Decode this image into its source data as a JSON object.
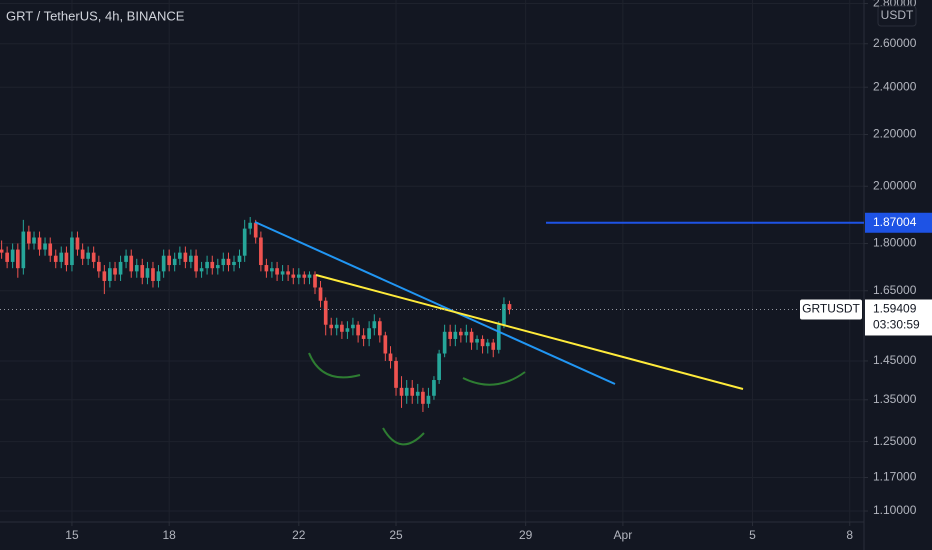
{
  "chart_data": {
    "type": "candlestick",
    "title": "GRT / TetherUS, 4h, BINANCE",
    "currency": "USDT",
    "symbol": "GRTUSDT",
    "last_price": 1.59409,
    "countdown": "03:30:59",
    "alert_level": 1.87004,
    "up_color": "#26a69a",
    "down_color": "#ef5350",
    "log_scale": true,
    "grid": true,
    "x": [
      12.83,
      13,
      13.17,
      13.33,
      13.5,
      13.67,
      13.83,
      14,
      14.17,
      14.33,
      14.5,
      14.67,
      14.83,
      15,
      15.17,
      15.33,
      15.5,
      15.67,
      15.83,
      16,
      16.17,
      16.33,
      16.5,
      16.67,
      16.83,
      17,
      17.17,
      17.33,
      17.5,
      17.67,
      17.83,
      18,
      18.17,
      18.33,
      18.5,
      18.67,
      18.83,
      19,
      19.17,
      19.33,
      19.5,
      19.67,
      19.83,
      20,
      20.17,
      20.33,
      20.5,
      20.67,
      20.83,
      21,
      21.17,
      21.33,
      21.5,
      21.67,
      21.83,
      22,
      22.17,
      22.33,
      22.5,
      22.67,
      22.83,
      23,
      23.17,
      23.33,
      23.5,
      23.67,
      23.83,
      24,
      24.17,
      24.33,
      24.5,
      24.67,
      24.83,
      25,
      25.17,
      25.33,
      25.5,
      25.67,
      25.83,
      26,
      26.17,
      26.33,
      26.5,
      26.67,
      26.83,
      27,
      27.17,
      27.33,
      27.5,
      27.67,
      27.83,
      28,
      28.17,
      28.33,
      28.5
    ],
    "open": [
      1.78,
      1.77,
      1.74,
      1.78,
      1.72,
      1.84,
      1.8,
      1.82,
      1.78,
      1.8,
      1.76,
      1.74,
      1.77,
      1.73,
      1.82,
      1.78,
      1.75,
      1.77,
      1.74,
      1.71,
      1.68,
      1.72,
      1.7,
      1.74,
      1.76,
      1.71,
      1.73,
      1.69,
      1.72,
      1.68,
      1.71,
      1.76,
      1.73,
      1.75,
      1.77,
      1.74,
      1.76,
      1.71,
      1.72,
      1.74,
      1.72,
      1.73,
      1.75,
      1.73,
      1.74,
      1.76,
      1.85,
      1.87,
      1.82,
      1.73,
      1.71,
      1.72,
      1.7,
      1.71,
      1.7,
      1.69,
      1.7,
      1.69,
      1.7,
      1.66,
      1.62,
      1.55,
      1.54,
      1.55,
      1.53,
      1.54,
      1.55,
      1.52,
      1.51,
      1.54,
      1.56,
      1.52,
      1.47,
      1.45,
      1.38,
      1.36,
      1.38,
      1.36,
      1.37,
      1.34,
      1.36,
      1.4,
      1.47,
      1.53,
      1.51,
      1.53,
      1.52,
      1.53,
      1.5,
      1.51,
      1.49,
      1.5,
      1.48,
      1.55,
      1.61
    ],
    "high": [
      1.81,
      1.79,
      1.8,
      1.8,
      1.88,
      1.86,
      1.84,
      1.84,
      1.82,
      1.82,
      1.78,
      1.79,
      1.79,
      1.84,
      1.84,
      1.8,
      1.79,
      1.79,
      1.76,
      1.73,
      1.74,
      1.74,
      1.76,
      1.78,
      1.78,
      1.75,
      1.75,
      1.74,
      1.74,
      1.73,
      1.78,
      1.78,
      1.77,
      1.79,
      1.79,
      1.78,
      1.78,
      1.74,
      1.76,
      1.76,
      1.75,
      1.77,
      1.77,
      1.76,
      1.78,
      1.88,
      1.89,
      1.88,
      1.84,
      1.75,
      1.74,
      1.74,
      1.73,
      1.73,
      1.72,
      1.72,
      1.71,
      1.71,
      1.71,
      1.68,
      1.63,
      1.57,
      1.57,
      1.56,
      1.56,
      1.57,
      1.56,
      1.54,
      1.56,
      1.58,
      1.57,
      1.53,
      1.49,
      1.46,
      1.41,
      1.4,
      1.4,
      1.39,
      1.38,
      1.38,
      1.41,
      1.48,
      1.55,
      1.55,
      1.55,
      1.54,
      1.55,
      1.54,
      1.52,
      1.52,
      1.51,
      1.51,
      1.56,
      1.63,
      1.62
    ],
    "low": [
      1.75,
      1.72,
      1.72,
      1.69,
      1.7,
      1.78,
      1.78,
      1.76,
      1.76,
      1.74,
      1.72,
      1.72,
      1.71,
      1.71,
      1.76,
      1.73,
      1.73,
      1.72,
      1.69,
      1.64,
      1.66,
      1.68,
      1.68,
      1.72,
      1.69,
      1.69,
      1.67,
      1.67,
      1.66,
      1.66,
      1.69,
      1.71,
      1.71,
      1.73,
      1.72,
      1.72,
      1.69,
      1.69,
      1.7,
      1.7,
      1.7,
      1.71,
      1.71,
      1.71,
      1.72,
      1.74,
      1.83,
      1.8,
      1.71,
      1.69,
      1.69,
      1.68,
      1.68,
      1.68,
      1.67,
      1.67,
      1.67,
      1.67,
      1.64,
      1.6,
      1.52,
      1.52,
      1.52,
      1.51,
      1.51,
      1.52,
      1.5,
      1.49,
      1.49,
      1.52,
      1.5,
      1.45,
      1.43,
      1.36,
      1.33,
      1.34,
      1.34,
      1.34,
      1.32,
      1.33,
      1.35,
      1.39,
      1.46,
      1.49,
      1.49,
      1.5,
      1.5,
      1.48,
      1.48,
      1.47,
      1.47,
      1.46,
      1.47,
      1.54,
      1.58
    ],
    "close": [
      1.77,
      1.74,
      1.78,
      1.72,
      1.84,
      1.8,
      1.82,
      1.78,
      1.8,
      1.76,
      1.74,
      1.77,
      1.73,
      1.82,
      1.78,
      1.75,
      1.77,
      1.74,
      1.71,
      1.68,
      1.72,
      1.7,
      1.74,
      1.76,
      1.71,
      1.73,
      1.69,
      1.72,
      1.68,
      1.71,
      1.76,
      1.73,
      1.75,
      1.77,
      1.74,
      1.76,
      1.71,
      1.72,
      1.74,
      1.72,
      1.73,
      1.75,
      1.73,
      1.74,
      1.76,
      1.85,
      1.87,
      1.82,
      1.73,
      1.71,
      1.72,
      1.7,
      1.71,
      1.7,
      1.69,
      1.7,
      1.69,
      1.7,
      1.66,
      1.62,
      1.55,
      1.54,
      1.55,
      1.53,
      1.54,
      1.55,
      1.52,
      1.51,
      1.54,
      1.56,
      1.52,
      1.47,
      1.45,
      1.38,
      1.36,
      1.38,
      1.36,
      1.37,
      1.34,
      1.36,
      1.4,
      1.47,
      1.53,
      1.51,
      1.53,
      1.52,
      1.53,
      1.5,
      1.51,
      1.49,
      1.5,
      1.48,
      1.55,
      1.61,
      1.59409
    ],
    "xlim": [
      12.78,
      39.44
    ],
    "xticks": [
      15,
      18,
      22,
      25,
      29,
      {
        "value": 32,
        "label": "Apr"
      },
      {
        "value": 36,
        "label": "5"
      },
      {
        "value": 39,
        "label": "8"
      }
    ],
    "ylim": [
      1.078,
      2.818
    ],
    "yticks": [
      {
        "value": 2.8,
        "label": "2.80000"
      },
      {
        "value": 2.6,
        "label": "2.60000"
      },
      {
        "value": 2.4,
        "label": "2.40000"
      },
      {
        "value": 2.2,
        "label": "2.20000"
      },
      {
        "value": 2.0,
        "label": "2.00000"
      },
      {
        "value": 1.8,
        "label": "1.80000"
      },
      {
        "value": 1.65,
        "label": "1.65000"
      },
      {
        "value": 1.45,
        "label": "1.45000"
      },
      {
        "value": 1.35,
        "label": "1.35000"
      },
      {
        "value": 1.25,
        "label": "1.25000"
      },
      {
        "value": 1.17,
        "label": "1.17000"
      },
      {
        "value": 1.1,
        "label": "1.10000"
      }
    ]
  }
}
